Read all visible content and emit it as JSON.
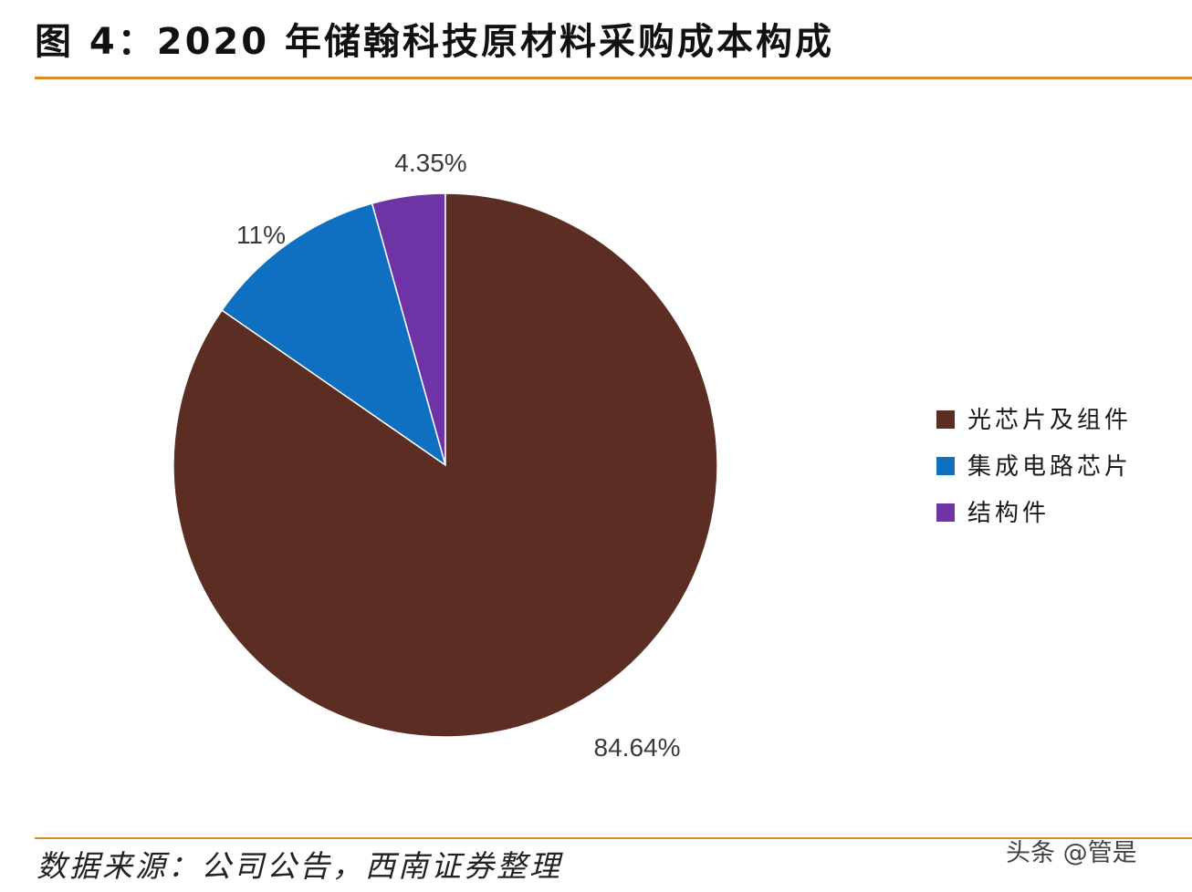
{
  "header": {
    "title": "图 4：2020 年储翰科技原材料采购成本构成"
  },
  "footer": {
    "source": "数据来源：公司公告，西南证券整理",
    "watermark": "头条 @管是"
  },
  "chart_data": {
    "type": "pie",
    "title": "",
    "slices": [
      {
        "name": "光芯片及组件",
        "value": 84.64,
        "label": "84.64%",
        "color": "#5c2d22"
      },
      {
        "name": "集成电路芯片",
        "value": 11,
        "label": "11%",
        "color": "#0f6fc0"
      },
      {
        "name": "结构件",
        "value": 4.35,
        "label": "4.35%",
        "color": "#6e34a6"
      }
    ],
    "start": "12 o'clock",
    "direction": "clockwise",
    "legend_position": "right"
  }
}
